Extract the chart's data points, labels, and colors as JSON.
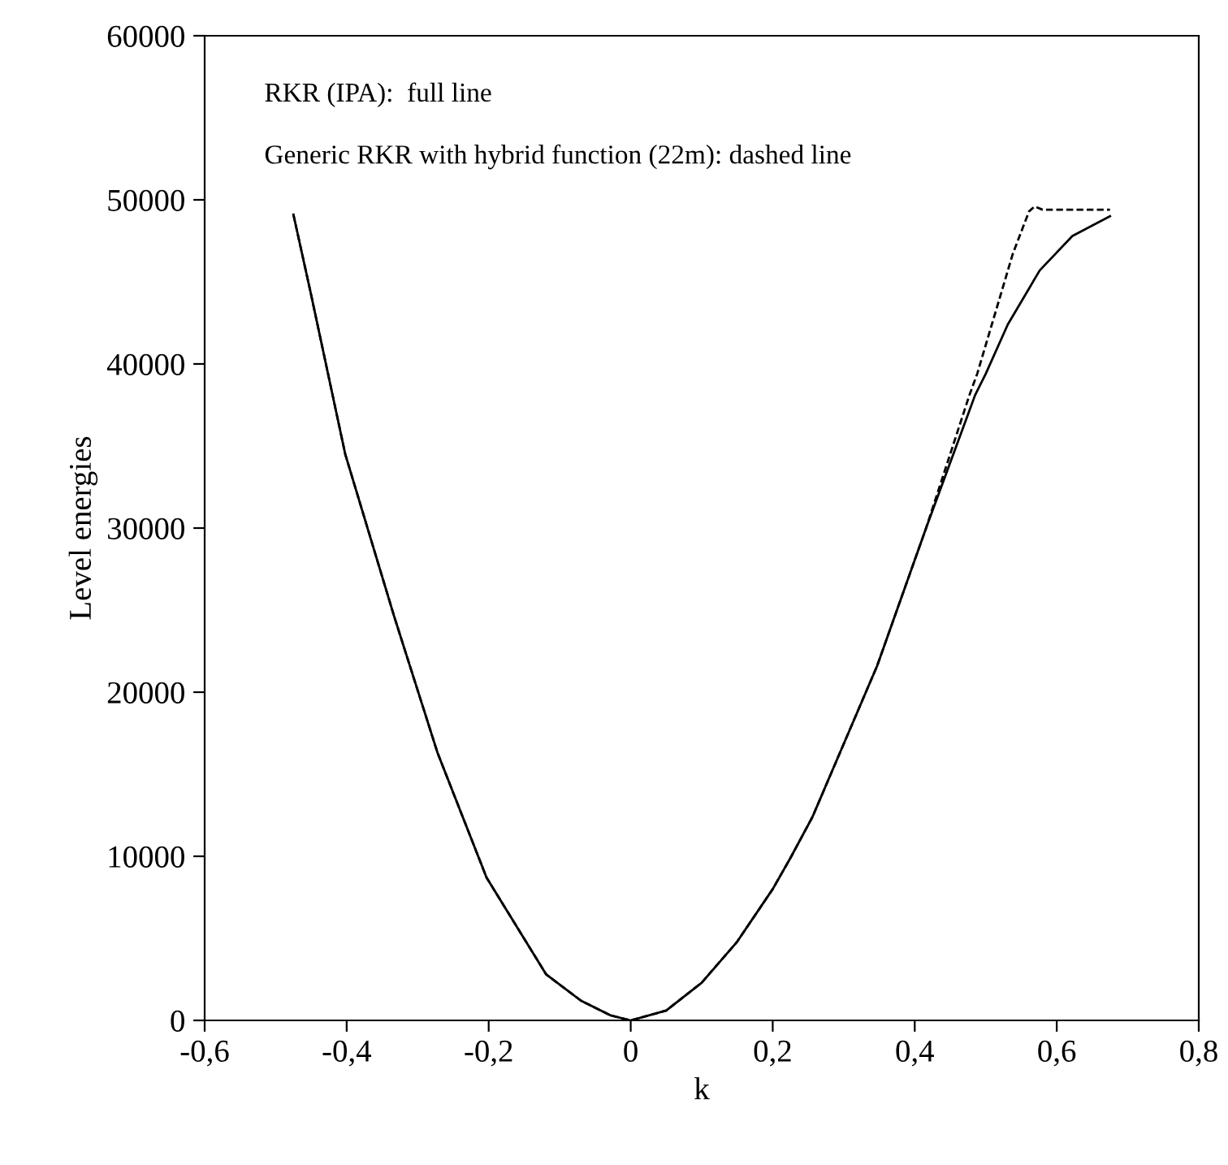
{
  "chart_data": {
    "type": "line",
    "xlabel": "k",
    "ylabel": "Level energies",
    "annotations": [
      "RKR (IPA):  full line",
      "Generic RKR with hybrid function (22m): dashed line"
    ],
    "series": [
      {
        "color": "#000000",
        "line_style": "solid",
        "x": [
          -0.475,
          -0.451,
          -0.402,
          -0.333,
          -0.272,
          -0.203,
          -0.119,
          -0.07,
          -0.028,
          0,
          0.05,
          0.1,
          0.15,
          0.2,
          0.225,
          0.256,
          0.347,
          0.416,
          0.485,
          0.5,
          0.531,
          0.576,
          0.622,
          0.675
        ],
        "values": [
          49100,
          44400,
          34500,
          24600,
          16300,
          8700,
          2800,
          1200,
          300,
          0,
          600,
          2300,
          4800,
          8000,
          9900,
          12400,
          21600,
          30000,
          38100,
          39400,
          42400,
          45700,
          47800,
          49000
        ]
      },
      {
        "color": "#000000",
        "line_style": "dashed",
        "x": [
          -0.475,
          -0.451,
          -0.402,
          -0.333,
          -0.272,
          -0.203,
          -0.119,
          -0.07,
          -0.028,
          0,
          0.05,
          0.1,
          0.15,
          0.2,
          0.225,
          0.256,
          0.347,
          0.416,
          0.477,
          0.488,
          0.538,
          0.561,
          0.569,
          0.58,
          0.675
        ],
        "values": [
          49100,
          44400,
          34500,
          24600,
          16300,
          8700,
          2800,
          1200,
          300,
          0,
          600,
          2300,
          4800,
          8000,
          9900,
          12400,
          21600,
          30000,
          38100,
          39400,
          46700,
          49300,
          49600,
          49400,
          49400
        ]
      }
    ],
    "xlim": [
      -0.6,
      0.8
    ],
    "xticks": [
      {
        "value": -0.6,
        "label": "-0,6"
      },
      {
        "value": -0.4,
        "label": "-0,4"
      },
      {
        "value": -0.2,
        "label": "-0,2"
      },
      0,
      {
        "value": 0.2,
        "label": "0,2"
      },
      {
        "value": 0.4,
        "label": "0,4"
      },
      {
        "value": 0.6,
        "label": "0,6"
      },
      {
        "value": 0.8,
        "label": "0,8"
      }
    ],
    "ylim": [
      0,
      60000
    ],
    "yticks": [
      0,
      10000,
      20000,
      30000,
      40000,
      50000,
      60000
    ],
    "grid": false,
    "legend": false
  }
}
